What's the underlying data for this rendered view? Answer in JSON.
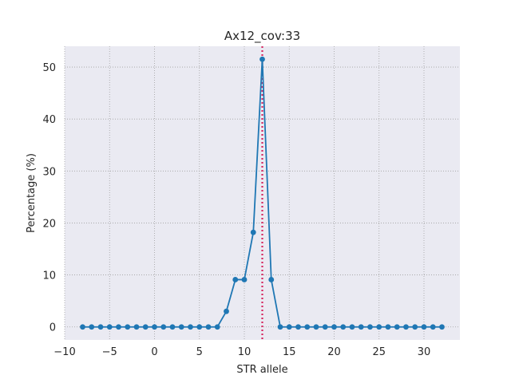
{
  "chart_data": {
    "type": "line",
    "title": "Ax12_cov:33",
    "xlabel": "STR allele",
    "ylabel": "Percentage (%)",
    "xlim": [
      -10,
      34
    ],
    "ylim": [
      -2.5,
      54
    ],
    "xticks": [
      -10,
      -5,
      0,
      5,
      10,
      15,
      20,
      25,
      30
    ],
    "yticks": [
      0,
      10,
      20,
      30,
      40,
      50
    ],
    "grid": true,
    "grid_style": "dotted",
    "background_color": "#eaeaf2",
    "series": [
      {
        "color": "#1f77b4",
        "x": [
          -8,
          -7,
          -6,
          -5,
          -4,
          -3,
          -2,
          -1,
          0,
          1,
          2,
          3,
          4,
          5,
          6,
          7,
          8,
          9,
          10,
          11,
          12,
          13,
          14,
          15,
          16,
          17,
          18,
          19,
          20,
          21,
          22,
          23,
          24,
          25,
          26,
          27,
          28,
          29,
          30,
          31,
          32
        ],
        "y": [
          0,
          0,
          0,
          0,
          0,
          0,
          0,
          0,
          0,
          0,
          0,
          0,
          0,
          0,
          0,
          0,
          3,
          9.1,
          9.1,
          18.2,
          51.5,
          9.1,
          0,
          0,
          0,
          0,
          0,
          0,
          0,
          0,
          0,
          0,
          0,
          0,
          0,
          0,
          0,
          0,
          0,
          0,
          0
        ]
      }
    ],
    "vline": {
      "x": 12,
      "color": "#d6275f",
      "style": "dotted"
    }
  }
}
